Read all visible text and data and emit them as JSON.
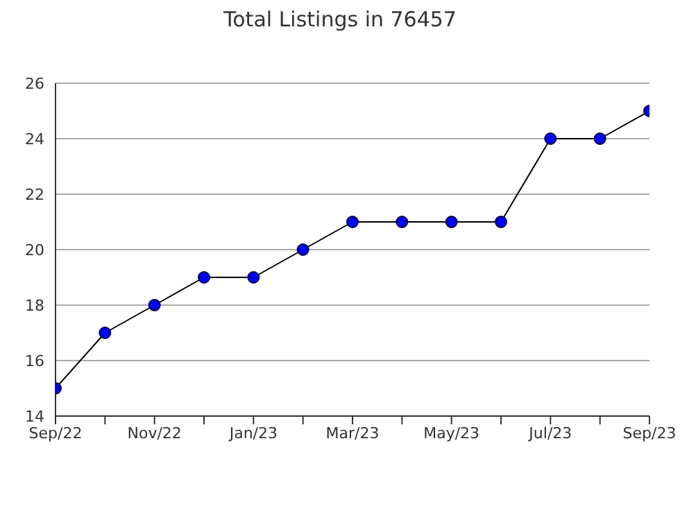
{
  "chart_data": {
    "type": "line",
    "title": "Total Listings in 76457",
    "categories": [
      "Sep/22",
      null,
      "Nov/22",
      null,
      "Jan/23",
      null,
      "Mar/23",
      null,
      "May/23",
      null,
      "Jul/23",
      null,
      "Sep/23"
    ],
    "series": [
      {
        "color": "#0000ff",
        "values": [
          15,
          17,
          18,
          19,
          19,
          20,
          21,
          21,
          21,
          21,
          24,
          24,
          25
        ]
      }
    ],
    "ylim": [
      14,
      26
    ],
    "yticks": [
      14,
      16,
      18,
      20,
      22,
      24,
      26
    ],
    "grid": "y",
    "marker": "circle",
    "line_style": "solid",
    "legend": false
  }
}
